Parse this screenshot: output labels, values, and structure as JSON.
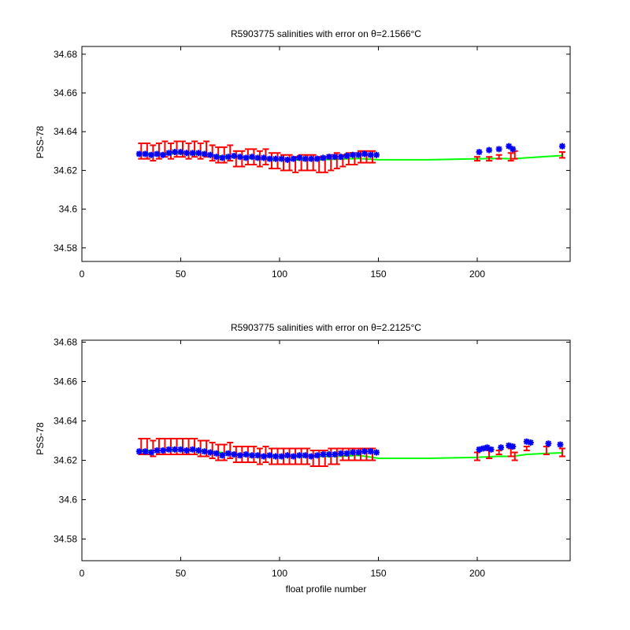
{
  "chart_data": [
    {
      "type": "scatter",
      "title": "R5903775 salinities with error on θ=2.1566°C",
      "xlabel": "",
      "ylabel": "PSS-78",
      "xlim": [
        0,
        247
      ],
      "ylim": [
        34.573,
        34.684
      ],
      "xticks": [
        "0",
        "50",
        "100",
        "150",
        "200"
      ],
      "xtick_values": [
        0,
        50,
        100,
        150,
        200
      ],
      "yticks": [
        "34.58",
        "34.6",
        "34.62",
        "34.64",
        "34.66",
        "34.68"
      ],
      "ytick_values": [
        34.58,
        34.6,
        34.62,
        34.64,
        34.66,
        34.68
      ],
      "grid": false,
      "colors": {
        "measured": "#0000ff",
        "calibrated": "#ff0000",
        "mapped": "#00ff00"
      },
      "series": [
        {
          "role": "mapped",
          "style": "line",
          "x": [
            28,
            40,
            50,
            60,
            70,
            80,
            90,
            100,
            110,
            120,
            130,
            140,
            150,
            175,
            200,
            210,
            218,
            225,
            235,
            243
          ],
          "y": [
            34.6285,
            34.6285,
            34.6288,
            34.6285,
            34.6275,
            34.6268,
            34.626,
            34.6255,
            34.6255,
            34.6255,
            34.6258,
            34.6262,
            34.6255,
            34.6255,
            34.626,
            34.6262,
            34.626,
            34.6265,
            34.6272,
            34.6277
          ]
        },
        {
          "role": "calibrated",
          "style": "errorbar",
          "x": [
            30,
            33,
            36,
            39,
            42,
            45,
            48,
            51,
            54,
            57,
            60,
            63,
            66,
            69,
            72,
            75,
            78,
            81,
            84,
            87,
            90,
            93,
            96,
            99,
            102,
            105,
            108,
            111,
            114,
            117,
            120,
            123,
            126,
            129,
            132,
            135,
            138,
            141,
            144,
            147,
            200,
            206,
            211,
            217,
            219,
            243
          ],
          "y": [
            34.63,
            34.63,
            34.629,
            34.63,
            34.631,
            34.63,
            34.631,
            34.631,
            34.63,
            34.631,
            34.63,
            34.631,
            34.629,
            34.628,
            34.628,
            34.629,
            34.626,
            34.626,
            34.627,
            34.627,
            34.626,
            34.627,
            34.625,
            34.625,
            34.624,
            34.624,
            34.623,
            34.624,
            34.624,
            34.624,
            34.623,
            34.623,
            34.624,
            34.625,
            34.625,
            34.626,
            34.626,
            34.627,
            34.627,
            34.627,
            34.626,
            34.626,
            34.627,
            34.627,
            34.628,
            34.628
          ],
          "err": [
            0.004,
            0.004,
            0.004,
            0.004,
            0.004,
            0.004,
            0.004,
            0.004,
            0.004,
            0.004,
            0.004,
            0.004,
            0.004,
            0.004,
            0.004,
            0.004,
            0.004,
            0.004,
            0.004,
            0.004,
            0.004,
            0.004,
            0.004,
            0.004,
            0.004,
            0.004,
            0.004,
            0.004,
            0.004,
            0.004,
            0.004,
            0.004,
            0.004,
            0.004,
            0.003,
            0.003,
            0.003,
            0.003,
            0.003,
            0.003,
            0.001,
            0.001,
            0.001,
            0.002,
            0.002,
            0.0015
          ]
        },
        {
          "role": "measured",
          "style": "markers",
          "x": [
            29,
            32,
            35,
            38,
            41,
            44,
            47,
            50,
            53,
            56,
            59,
            62,
            65,
            68,
            71,
            74,
            77,
            80,
            83,
            86,
            89,
            92,
            95,
            98,
            101,
            104,
            107,
            110,
            113,
            116,
            119,
            122,
            125,
            128,
            131,
            134,
            137,
            140,
            143,
            146,
            149,
            201,
            206,
            211,
            216,
            218,
            243
          ],
          "y": [
            34.6285,
            34.6285,
            34.628,
            34.6285,
            34.628,
            34.629,
            34.6295,
            34.6295,
            34.629,
            34.629,
            34.629,
            34.6285,
            34.628,
            34.627,
            34.6265,
            34.627,
            34.6275,
            34.627,
            34.6265,
            34.627,
            34.6265,
            34.6265,
            34.626,
            34.626,
            34.626,
            34.6255,
            34.626,
            34.6265,
            34.626,
            34.626,
            34.626,
            34.6265,
            34.627,
            34.627,
            34.627,
            34.6275,
            34.628,
            34.628,
            34.6285,
            34.628,
            34.628,
            34.6295,
            34.6305,
            34.631,
            34.6325,
            34.631,
            34.6325
          ]
        }
      ]
    },
    {
      "type": "scatter",
      "title": "R5903775 salinities with error on θ=2.2125°C",
      "xlabel": "float profile number",
      "ylabel": "PSS-78",
      "xlim": [
        0,
        247
      ],
      "ylim": [
        34.569,
        34.681
      ],
      "xticks": [
        "0",
        "50",
        "100",
        "150",
        "200"
      ],
      "xtick_values": [
        0,
        50,
        100,
        150,
        200
      ],
      "yticks": [
        "34.58",
        "34.6",
        "34.62",
        "34.64",
        "34.66",
        "34.68"
      ],
      "ytick_values": [
        34.58,
        34.6,
        34.62,
        34.64,
        34.66,
        34.68
      ],
      "grid": false,
      "colors": {
        "measured": "#0000ff",
        "calibrated": "#ff0000",
        "mapped": "#00ff00"
      },
      "series": [
        {
          "role": "mapped",
          "style": "line",
          "x": [
            28,
            40,
            50,
            60,
            70,
            80,
            90,
            100,
            110,
            120,
            130,
            140,
            150,
            175,
            200,
            210,
            218,
            225,
            235,
            243
          ],
          "y": [
            34.625,
            34.625,
            34.6255,
            34.625,
            34.624,
            34.623,
            34.6225,
            34.622,
            34.622,
            34.622,
            34.622,
            34.6225,
            34.621,
            34.621,
            34.6215,
            34.622,
            34.622,
            34.623,
            34.6235,
            34.6238
          ]
        },
        {
          "role": "calibrated",
          "style": "errorbar",
          "x": [
            30,
            33,
            36,
            39,
            42,
            45,
            48,
            51,
            54,
            57,
            60,
            63,
            66,
            69,
            72,
            75,
            78,
            81,
            84,
            87,
            90,
            93,
            96,
            99,
            102,
            105,
            108,
            111,
            114,
            117,
            120,
            123,
            126,
            129,
            132,
            135,
            138,
            141,
            144,
            147,
            200,
            206,
            211,
            217,
            219,
            225,
            235,
            243
          ],
          "y": [
            34.627,
            34.627,
            34.626,
            34.627,
            34.627,
            34.627,
            34.627,
            34.627,
            34.627,
            34.627,
            34.626,
            34.626,
            34.625,
            34.624,
            34.624,
            34.625,
            34.623,
            34.623,
            34.623,
            34.623,
            34.622,
            34.623,
            34.622,
            34.622,
            34.622,
            34.622,
            34.622,
            34.622,
            34.622,
            34.621,
            34.621,
            34.621,
            34.622,
            34.622,
            34.623,
            34.623,
            34.623,
            34.623,
            34.623,
            34.623,
            34.622,
            34.623,
            34.624,
            34.624,
            34.622,
            34.626,
            34.625,
            34.624
          ],
          "err": [
            0.004,
            0.004,
            0.004,
            0.004,
            0.004,
            0.004,
            0.004,
            0.004,
            0.004,
            0.004,
            0.004,
            0.004,
            0.004,
            0.004,
            0.004,
            0.004,
            0.004,
            0.004,
            0.004,
            0.004,
            0.004,
            0.004,
            0.004,
            0.004,
            0.004,
            0.004,
            0.004,
            0.004,
            0.004,
            0.004,
            0.004,
            0.004,
            0.004,
            0.004,
            0.003,
            0.003,
            0.003,
            0.003,
            0.003,
            0.003,
            0.002,
            0.002,
            0.001,
            0.002,
            0.002,
            0.001,
            0.002,
            0.002
          ]
        },
        {
          "role": "measured",
          "style": "markers",
          "x": [
            29,
            32,
            35,
            38,
            41,
            44,
            47,
            50,
            53,
            56,
            59,
            62,
            65,
            68,
            71,
            74,
            77,
            80,
            83,
            86,
            89,
            92,
            95,
            98,
            101,
            104,
            107,
            110,
            113,
            116,
            119,
            122,
            125,
            128,
            131,
            134,
            137,
            140,
            143,
            146,
            149,
            201,
            203,
            205,
            207,
            212,
            216,
            218,
            225,
            227,
            236,
            242
          ],
          "y": [
            34.6245,
            34.6245,
            34.624,
            34.625,
            34.625,
            34.6255,
            34.6255,
            34.6255,
            34.625,
            34.6255,
            34.625,
            34.6245,
            34.624,
            34.6235,
            34.6225,
            34.6235,
            34.623,
            34.6225,
            34.623,
            34.6225,
            34.6225,
            34.622,
            34.6225,
            34.622,
            34.622,
            34.6225,
            34.622,
            34.6225,
            34.6225,
            34.622,
            34.6225,
            34.623,
            34.623,
            34.623,
            34.6235,
            34.6235,
            34.624,
            34.624,
            34.6245,
            34.6245,
            34.624,
            34.6255,
            34.626,
            34.6265,
            34.6255,
            34.6265,
            34.6275,
            34.627,
            34.6295,
            34.629,
            34.6285,
            34.628
          ]
        }
      ]
    }
  ]
}
